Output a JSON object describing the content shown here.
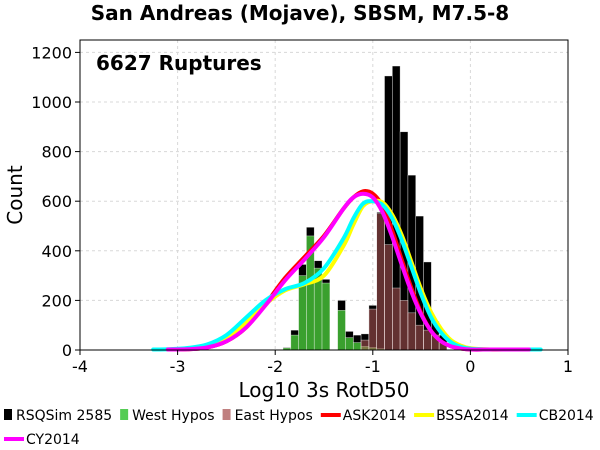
{
  "chart_data": {
    "type": "bar",
    "title": "San Andreas (Mojave), SBSM, M7.5-8",
    "xlabel": "Log10 3s RotD50",
    "ylabel": "Count",
    "xlim": [
      -4,
      1
    ],
    "ylim": [
      0,
      1250
    ],
    "xticks": [
      -4,
      -3,
      -2,
      -1,
      0,
      1
    ],
    "yticks": [
      0,
      200,
      400,
      600,
      800,
      1000,
      1200
    ],
    "xtick_labels": [
      "-4",
      "-3",
      "-2",
      "-1",
      "0",
      "1"
    ],
    "ytick_labels": [
      "0",
      "200",
      "400",
      "600",
      "800",
      "1000",
      "1200"
    ],
    "grid": true,
    "annotation": "6627 Ruptures",
    "legend_position": "below",
    "histogram": {
      "bin_width": 0.08,
      "bin_starts": [
        -1.92,
        -1.84,
        -1.76,
        -1.68,
        -1.6,
        -1.52,
        -1.44,
        -1.36,
        -1.28,
        -1.2,
        -1.12,
        -1.04,
        -0.96,
        -0.88,
        -0.8,
        -0.72,
        -0.64,
        -0.56,
        -0.48,
        -0.4,
        -0.32
      ],
      "series": [
        {
          "name": "RSQSim 2585",
          "color": "#000000",
          "values": [
            10,
            80,
            345,
            495,
            360,
            285,
            0,
            200,
            75,
            60,
            65,
            180,
            555,
            1105,
            1145,
            880,
            705,
            540,
            355,
            115,
            60
          ]
        },
        {
          "name": "West Hypos",
          "color": "#3aa02e",
          "values": [
            8,
            60,
            300,
            460,
            330,
            270,
            0,
            160,
            50,
            30,
            15,
            10,
            5,
            0,
            0,
            0,
            0,
            0,
            0,
            0,
            0
          ]
        },
        {
          "name": "East Hypos",
          "color": "#b45a5a",
          "values": [
            0,
            0,
            0,
            0,
            0,
            0,
            0,
            0,
            0,
            0,
            40,
            165,
            550,
            425,
            250,
            200,
            150,
            100,
            80,
            60,
            30
          ]
        }
      ]
    },
    "gmpe_curves": [
      {
        "name": "ASK2014",
        "color": "#ff0000",
        "x": [
          -3.1,
          -2.9,
          -2.7,
          -2.5,
          -2.3,
          -2.1,
          -1.9,
          -1.7,
          -1.5,
          -1.3,
          -1.2,
          -1.1,
          -1.0,
          -0.9,
          -0.8,
          -0.7,
          -0.6,
          -0.5,
          -0.4,
          -0.3,
          -0.2,
          -0.1,
          0.0,
          0.2,
          0.4,
          0.6
        ],
        "y": [
          1,
          3,
          10,
          35,
          90,
          185,
          290,
          375,
          460,
          570,
          615,
          640,
          630,
          580,
          480,
          360,
          245,
          145,
          75,
          35,
          15,
          6,
          2,
          1,
          0,
          0
        ]
      },
      {
        "name": "BSSA2014",
        "color": "#ffff00",
        "x": [
          -3.1,
          -2.9,
          -2.7,
          -2.5,
          -2.3,
          -2.1,
          -1.9,
          -1.7,
          -1.5,
          -1.3,
          -1.2,
          -1.1,
          -1.0,
          -0.9,
          -0.8,
          -0.7,
          -0.6,
          -0.5,
          -0.4,
          -0.3,
          -0.2,
          -0.1,
          0.0,
          0.2,
          0.4,
          0.6
        ],
        "y": [
          2,
          6,
          18,
          50,
          110,
          185,
          240,
          265,
          300,
          420,
          505,
          580,
          600,
          595,
          545,
          460,
          350,
          240,
          150,
          85,
          40,
          18,
          7,
          2,
          0,
          0
        ]
      },
      {
        "name": "CB2014",
        "color": "#00ffff",
        "x": [
          -3.25,
          -3.1,
          -2.9,
          -2.7,
          -2.5,
          -2.3,
          -2.1,
          -1.9,
          -1.7,
          -1.5,
          -1.3,
          -1.2,
          -1.1,
          -1.0,
          -0.9,
          -0.8,
          -0.7,
          -0.6,
          -0.5,
          -0.4,
          -0.3,
          -0.2,
          -0.1,
          0.0,
          0.2,
          0.4,
          0.6,
          0.72
        ],
        "y": [
          2,
          3,
          8,
          22,
          60,
          130,
          200,
          245,
          270,
          330,
          450,
          530,
          590,
          600,
          585,
          530,
          440,
          330,
          220,
          130,
          70,
          32,
          13,
          5,
          2,
          1,
          1,
          1
        ]
      },
      {
        "name": "CY2014",
        "color": "#ff00ff",
        "x": [
          -3.1,
          -2.9,
          -2.7,
          -2.5,
          -2.3,
          -2.1,
          -1.9,
          -1.7,
          -1.5,
          -1.3,
          -1.2,
          -1.1,
          -1.0,
          -0.9,
          -0.8,
          -0.7,
          -0.6,
          -0.5,
          -0.4,
          -0.3,
          -0.2,
          -0.1,
          0.0,
          0.2,
          0.4,
          0.6
        ],
        "y": [
          1,
          3,
          10,
          35,
          90,
          180,
          280,
          365,
          455,
          570,
          615,
          630,
          615,
          555,
          455,
          340,
          230,
          140,
          75,
          35,
          15,
          6,
          2,
          1,
          0,
          0
        ]
      }
    ],
    "legend": [
      {
        "label": "RSQSim 2585",
        "color": "#000000",
        "kind": "hist"
      },
      {
        "label": "West Hypos",
        "color": "#55cc55",
        "kind": "hist"
      },
      {
        "label": "East Hypos",
        "color": "#c08080",
        "kind": "hist"
      },
      {
        "label": "ASK2014",
        "color": "#ff0000",
        "kind": "line"
      },
      {
        "label": "BSSA2014",
        "color": "#ffff00",
        "kind": "line"
      },
      {
        "label": "CB2014",
        "color": "#00ffff",
        "kind": "line"
      },
      {
        "label": "CY2014",
        "color": "#ff00ff",
        "kind": "line"
      }
    ]
  }
}
